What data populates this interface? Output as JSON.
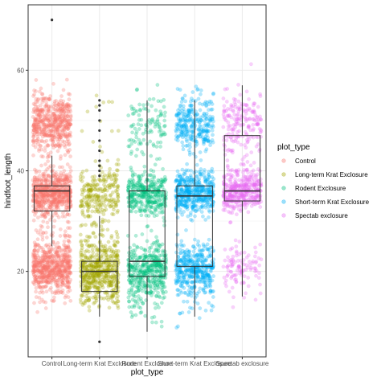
{
  "chart_data": {
    "type": "boxplot_jitter",
    "title": "",
    "xlabel": "plot_type",
    "ylabel": "hindfoot_length",
    "ylim": [
      3,
      73
    ],
    "yticks": [
      20,
      40,
      60
    ],
    "grid": true,
    "legend_title": "plot_type",
    "legend_position": "right",
    "categories": [
      "Control",
      "Long-term Krat Exclosure",
      "Rodent Exclosure",
      "Short-term Krat Exclosure",
      "Spectab exclosure"
    ],
    "colors": [
      "#F8766D",
      "#A3A500",
      "#00BF7D",
      "#00B0F6",
      "#E76BF3"
    ],
    "point_alpha": 0.3,
    "boxes": [
      {
        "name": "Control",
        "whisker_low": 25,
        "q1": 32,
        "median": 36,
        "q3": 37,
        "whisker_high": 43,
        "outliers": [
          70
        ]
      },
      {
        "name": "Long-term Krat Exclosure",
        "whisker_low": 11,
        "q1": 16,
        "median": 20,
        "q3": 22,
        "whisker_high": 31,
        "outliers": [
          6,
          39,
          40,
          41,
          42,
          44,
          46,
          48,
          50,
          52,
          53,
          54
        ]
      },
      {
        "name": "Rodent Exclosure",
        "whisker_low": 8,
        "q1": 19,
        "median": 22,
        "q3": 36,
        "whisker_high": 54,
        "outliers": []
      },
      {
        "name": "Short-term Krat Exclosure",
        "whisker_low": 11,
        "q1": 21,
        "median": 35,
        "q3": 37,
        "whisker_high": 54,
        "outliers": []
      },
      {
        "name": "Spectab exclosure",
        "whisker_low": 15,
        "q1": 34,
        "median": 36,
        "q3": 47,
        "whisker_high": 57,
        "outliers": []
      }
    ],
    "clusters": [
      {
        "name": "Control",
        "groups": [
          {
            "center": 49.5,
            "spread": 3.0,
            "count": 520
          },
          {
            "center": 35.5,
            "spread": 2.2,
            "count": 620
          },
          {
            "center": 20.5,
            "spread": 2.5,
            "count": 620
          },
          {
            "center": 29,
            "spread": 4.0,
            "count": 40
          }
        ]
      },
      {
        "name": "Long-term Krat Exclosure",
        "groups": [
          {
            "center": 35.5,
            "spread": 2.5,
            "count": 220
          },
          {
            "center": 19.5,
            "spread": 3.0,
            "count": 520
          },
          {
            "center": 27,
            "spread": 3.5,
            "count": 60
          },
          {
            "center": 48,
            "spread": 4.0,
            "count": 14
          }
        ]
      },
      {
        "name": "Rodent Exclosure",
        "groups": [
          {
            "center": 49,
            "spread": 3.0,
            "count": 110
          },
          {
            "center": 35.5,
            "spread": 2.2,
            "count": 360
          },
          {
            "center": 20,
            "spread": 2.8,
            "count": 420
          },
          {
            "center": 13,
            "spread": 2.5,
            "count": 30
          }
        ]
      },
      {
        "name": "Short-term Krat Exclosure",
        "groups": [
          {
            "center": 49.5,
            "spread": 2.8,
            "count": 300
          },
          {
            "center": 35.5,
            "spread": 2.2,
            "count": 460
          },
          {
            "center": 20.5,
            "spread": 2.6,
            "count": 420
          },
          {
            "center": 13,
            "spread": 2.0,
            "count": 20
          }
        ]
      },
      {
        "name": "Spectab exclosure",
        "groups": [
          {
            "center": 50,
            "spread": 3.0,
            "count": 170
          },
          {
            "center": 36,
            "spread": 2.0,
            "count": 390
          },
          {
            "center": 20.5,
            "spread": 2.5,
            "count": 110
          },
          {
            "center": 43,
            "spread": 2.5,
            "count": 30
          }
        ]
      }
    ]
  }
}
